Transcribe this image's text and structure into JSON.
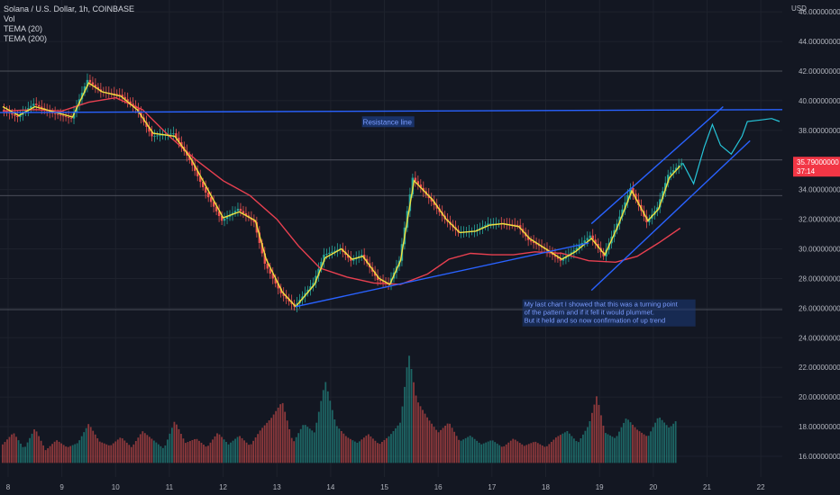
{
  "legend": {
    "symbol_line": "Solana / U.S. Dollar, 1h, COINBASE",
    "vol": "Vol",
    "tema20": "TEMA (20)",
    "tema200": "TEMA (200)"
  },
  "chart_data": {
    "type": "candlestick",
    "currency_label": "USD",
    "price_axis_ticks": [
      "16.00000000",
      "18.00000000",
      "20.00000000",
      "22.00000000",
      "24.00000000",
      "26.00000000",
      "28.00000000",
      "30.00000000",
      "32.00000000",
      "34.00000000",
      "36.00000000",
      "38.00000000",
      "40.00000000",
      "42.00000000",
      "44.00000000",
      "46.00000000"
    ],
    "price_axis_values": [
      16,
      18,
      20,
      22,
      24,
      26,
      28,
      30,
      32,
      34,
      36,
      38,
      40,
      42,
      44,
      46
    ],
    "ylim": [
      14.6,
      46.8
    ],
    "x_ticks": [
      "8",
      "9",
      "10",
      "11",
      "12",
      "13",
      "14",
      "15",
      "16",
      "17",
      "18",
      "19",
      "20",
      "21",
      "22"
    ],
    "x_tick_days": [
      8,
      9,
      10,
      11,
      12,
      13,
      14,
      15,
      16,
      17,
      18,
      19,
      20,
      21,
      22
    ],
    "xlim": [
      7.85,
      22.4
    ],
    "current_price": {
      "label": "35.79000000",
      "countdown": "37:14",
      "value": 35.79
    },
    "horizontal_levels": [
      42.0,
      36.0,
      33.6,
      25.9
    ],
    "price_path": [
      [
        7.9,
        39.4
      ],
      [
        8.2,
        38.9
      ],
      [
        8.5,
        39.8
      ],
      [
        8.8,
        39.2
      ],
      [
        9.2,
        38.8
      ],
      [
        9.5,
        41.4
      ],
      [
        9.75,
        40.6
      ],
      [
        10.1,
        40.4
      ],
      [
        10.4,
        39.5
      ],
      [
        10.7,
        37.6
      ],
      [
        11.1,
        37.8
      ],
      [
        11.4,
        36.0
      ],
      [
        11.7,
        33.8
      ],
      [
        12.0,
        31.9
      ],
      [
        12.3,
        32.7
      ],
      [
        12.6,
        31.8
      ],
      [
        12.8,
        29.0
      ],
      [
        13.1,
        27.0
      ],
      [
        13.35,
        26.1
      ],
      [
        13.7,
        27.7
      ],
      [
        13.9,
        29.6
      ],
      [
        14.2,
        30.0
      ],
      [
        14.4,
        29.2
      ],
      [
        14.6,
        29.6
      ],
      [
        14.9,
        27.9
      ],
      [
        15.1,
        27.6
      ],
      [
        15.3,
        29.2
      ],
      [
        15.55,
        34.8
      ],
      [
        15.9,
        33.2
      ],
      [
        16.15,
        32.0
      ],
      [
        16.4,
        31.1
      ],
      [
        16.7,
        31.2
      ],
      [
        16.95,
        31.7
      ],
      [
        17.2,
        31.7
      ],
      [
        17.5,
        31.6
      ],
      [
        17.7,
        30.6
      ],
      [
        18.0,
        30.0
      ],
      [
        18.3,
        29.2
      ],
      [
        18.55,
        29.9
      ],
      [
        18.85,
        30.9
      ],
      [
        19.1,
        29.5
      ],
      [
        19.35,
        31.7
      ],
      [
        19.6,
        34.1
      ],
      [
        19.9,
        31.8
      ],
      [
        20.1,
        32.8
      ],
      [
        20.3,
        35.0
      ],
      [
        20.55,
        35.79
      ]
    ],
    "tema20": [
      [
        7.9,
        39.6
      ],
      [
        8.2,
        39.0
      ],
      [
        8.5,
        39.6
      ],
      [
        8.8,
        39.3
      ],
      [
        9.2,
        38.9
      ],
      [
        9.5,
        41.2
      ],
      [
        9.75,
        40.6
      ],
      [
        10.1,
        40.3
      ],
      [
        10.4,
        39.4
      ],
      [
        10.7,
        37.8
      ],
      [
        11.1,
        37.6
      ],
      [
        11.4,
        36.1
      ],
      [
        11.7,
        34.1
      ],
      [
        12.0,
        32.1
      ],
      [
        12.3,
        32.5
      ],
      [
        12.6,
        31.9
      ],
      [
        12.8,
        29.3
      ],
      [
        13.1,
        27.1
      ],
      [
        13.35,
        26.1
      ],
      [
        13.7,
        27.6
      ],
      [
        13.9,
        29.4
      ],
      [
        14.2,
        30.0
      ],
      [
        14.4,
        29.3
      ],
      [
        14.6,
        29.5
      ],
      [
        14.9,
        28.0
      ],
      [
        15.1,
        27.6
      ],
      [
        15.3,
        29.2
      ],
      [
        15.55,
        34.6
      ],
      [
        15.9,
        33.3
      ],
      [
        16.15,
        32.0
      ],
      [
        16.4,
        31.1
      ],
      [
        16.7,
        31.2
      ],
      [
        16.95,
        31.6
      ],
      [
        17.2,
        31.7
      ],
      [
        17.5,
        31.5
      ],
      [
        17.7,
        30.7
      ],
      [
        18.0,
        30.0
      ],
      [
        18.3,
        29.3
      ],
      [
        18.55,
        29.8
      ],
      [
        18.85,
        30.7
      ],
      [
        19.1,
        29.6
      ],
      [
        19.35,
        31.6
      ],
      [
        19.6,
        33.9
      ],
      [
        19.9,
        31.9
      ],
      [
        20.1,
        32.7
      ],
      [
        20.3,
        34.8
      ],
      [
        20.5,
        35.6
      ]
    ],
    "tema200": [
      [
        7.9,
        39.3
      ],
      [
        8.5,
        39.4
      ],
      [
        9.0,
        39.3
      ],
      [
        9.5,
        39.9
      ],
      [
        10.0,
        40.2
      ],
      [
        10.5,
        39.4
      ],
      [
        11.0,
        37.6
      ],
      [
        11.5,
        36.0
      ],
      [
        12.0,
        34.6
      ],
      [
        12.5,
        33.6
      ],
      [
        13.0,
        32.0
      ],
      [
        13.4,
        30.2
      ],
      [
        13.8,
        28.7
      ],
      [
        14.3,
        28.1
      ],
      [
        14.8,
        27.7
      ],
      [
        15.3,
        27.6
      ],
      [
        15.8,
        28.3
      ],
      [
        16.2,
        29.3
      ],
      [
        16.6,
        29.7
      ],
      [
        17.0,
        29.6
      ],
      [
        17.4,
        29.6
      ],
      [
        17.8,
        29.8
      ],
      [
        18.3,
        29.7
      ],
      [
        18.8,
        29.2
      ],
      [
        19.3,
        29.1
      ],
      [
        19.7,
        29.5
      ],
      [
        20.1,
        30.4
      ],
      [
        20.5,
        31.4
      ]
    ],
    "volume": [
      [
        7.9,
        16.8
      ],
      [
        8.1,
        17.6
      ],
      [
        8.3,
        16.5
      ],
      [
        8.5,
        17.9
      ],
      [
        8.7,
        16.4
      ],
      [
        8.9,
        17.1
      ],
      [
        9.1,
        16.6
      ],
      [
        9.3,
        16.9
      ],
      [
        9.5,
        18.2
      ],
      [
        9.7,
        17.0
      ],
      [
        9.9,
        16.7
      ],
      [
        10.1,
        17.3
      ],
      [
        10.3,
        16.6
      ],
      [
        10.5,
        17.7
      ],
      [
        10.7,
        17.1
      ],
      [
        10.9,
        16.5
      ],
      [
        11.1,
        18.4
      ],
      [
        11.3,
        16.9
      ],
      [
        11.5,
        17.2
      ],
      [
        11.7,
        16.6
      ],
      [
        11.9,
        17.6
      ],
      [
        12.1,
        16.8
      ],
      [
        12.3,
        17.4
      ],
      [
        12.5,
        16.7
      ],
      [
        12.7,
        17.8
      ],
      [
        12.9,
        18.6
      ],
      [
        13.1,
        19.7
      ],
      [
        13.3,
        16.9
      ],
      [
        13.5,
        18.2
      ],
      [
        13.7,
        17.6
      ],
      [
        13.9,
        21.1
      ],
      [
        14.1,
        18.1
      ],
      [
        14.3,
        17.3
      ],
      [
        14.5,
        16.9
      ],
      [
        14.7,
        17.5
      ],
      [
        14.9,
        16.8
      ],
      [
        15.1,
        17.4
      ],
      [
        15.3,
        18.3
      ],
      [
        15.45,
        23.0
      ],
      [
        15.6,
        19.8
      ],
      [
        15.8,
        18.6
      ],
      [
        16.0,
        17.6
      ],
      [
        16.2,
        18.3
      ],
      [
        16.4,
        17.0
      ],
      [
        16.6,
        17.4
      ],
      [
        16.8,
        16.8
      ],
      [
        17.0,
        17.1
      ],
      [
        17.2,
        16.6
      ],
      [
        17.4,
        17.2
      ],
      [
        17.6,
        16.7
      ],
      [
        17.8,
        17.0
      ],
      [
        18.0,
        16.6
      ],
      [
        18.2,
        17.3
      ],
      [
        18.4,
        17.7
      ],
      [
        18.6,
        16.9
      ],
      [
        18.8,
        18.1
      ],
      [
        18.95,
        20.1
      ],
      [
        19.1,
        17.6
      ],
      [
        19.3,
        17.2
      ],
      [
        19.5,
        18.6
      ],
      [
        19.7,
        17.8
      ],
      [
        19.9,
        17.3
      ],
      [
        20.1,
        18.7
      ],
      [
        20.3,
        17.9
      ],
      [
        20.45,
        18.5
      ]
    ],
    "projection_path": [
      [
        20.55,
        35.79
      ],
      [
        20.75,
        34.4
      ],
      [
        20.95,
        36.9
      ],
      [
        21.1,
        38.4
      ],
      [
        21.25,
        37.0
      ],
      [
        21.45,
        36.4
      ],
      [
        21.65,
        37.6
      ],
      [
        21.75,
        38.6
      ],
      [
        22.0,
        38.7
      ],
      [
        22.2,
        38.8
      ],
      [
        22.35,
        38.6
      ]
    ],
    "trendlines": [
      {
        "from": [
          7.85,
          39.2
        ],
        "to": [
          22.4,
          39.4
        ],
        "color": "#2962ff"
      },
      {
        "from": [
          13.35,
          26.1
        ],
        "to": [
          18.8,
          30.4
        ],
        "color": "#2962ff"
      },
      {
        "from": [
          18.85,
          31.7
        ],
        "to": [
          21.3,
          39.6
        ],
        "color": "#2962ff"
      },
      {
        "from": [
          18.85,
          27.2
        ],
        "to": [
          21.8,
          37.3
        ],
        "color": "#2962ff"
      }
    ],
    "annotations": [
      {
        "text": "Resistance line",
        "at": [
          14.6,
          38.4
        ]
      },
      {
        "lines": [
          "My last chart I showed that this was a turning point",
          "of the pattern and if it fell it would plummet.",
          "But it held and so now confirmation of up trend"
        ],
        "at": [
          17.6,
          26.1
        ]
      }
    ],
    "colors": {
      "background": "#131722",
      "candle_up": "#26a69a",
      "candle_down": "#ef5350",
      "tema20": "#f0e040",
      "tema200": "#e84050",
      "trendline": "#2962ff",
      "projection": "#26c6da",
      "price_label": "#f23645"
    },
    "grid": true
  }
}
